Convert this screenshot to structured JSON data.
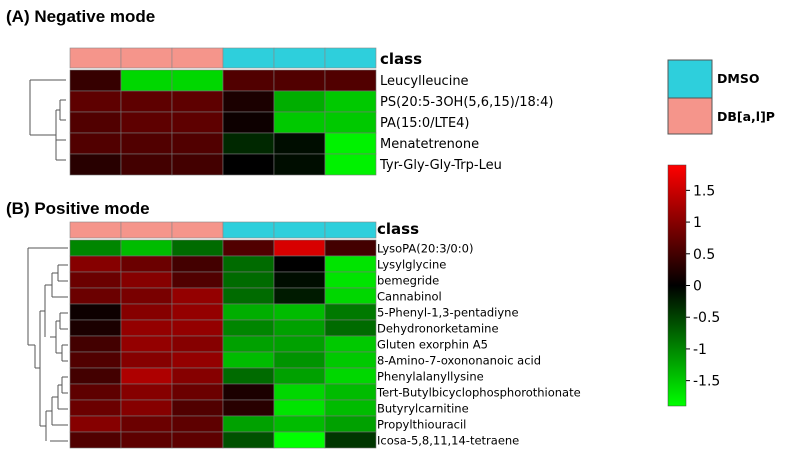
{
  "chart_data": [
    {
      "type": "heatmap",
      "title": "(A) Negative mode",
      "class_label": "class",
      "columns": [
        "DB[a,l]P",
        "DB[a,l]P",
        "DB[a,l]P",
        "DMSO",
        "DMSO",
        "DMSO"
      ],
      "rows": [
        "Leucylleucine",
        "PS(20:5-3OH(5,6,15)/18:4)",
        "PA(15:0/LTE4)",
        "Menatetrenone",
        "Tyr-Gly-Gly-Trp-Leu"
      ],
      "values": [
        [
          0.4,
          -1.6,
          -1.6,
          0.6,
          0.6,
          0.6
        ],
        [
          0.7,
          0.7,
          0.7,
          0.2,
          -1.3,
          -1.5
        ],
        [
          0.6,
          0.7,
          0.7,
          0.1,
          -1.5,
          -1.5
        ],
        [
          0.6,
          0.6,
          0.6,
          -0.3,
          -0.1,
          -1.8
        ],
        [
          0.3,
          0.5,
          0.5,
          0.0,
          -0.1,
          -1.8
        ]
      ]
    },
    {
      "type": "heatmap",
      "title": "(B) Positive mode",
      "class_label": "class",
      "columns": [
        "DB[a,l]P",
        "DB[a,l]P",
        "DB[a,l]P",
        "DMSO",
        "DMSO",
        "DMSO"
      ],
      "rows": [
        "LysoPA(20:3/0:0)",
        "Lysylglycine",
        "bemegride",
        "Cannabinol",
        "5-Phenyl-1,3-pentadiyne",
        "Dehydronorketamine",
        "Gluten exorphin A5",
        "8-Amino-7-oxononanoic acid",
        "Phenylalanyllysine",
        "Tert-Butylbicyclophosphorothionate",
        "Butyrylcarnitine",
        "Propylthiouracil",
        "Icosa-5,8,11,14-tetraene"
      ],
      "values": [
        [
          -1.0,
          -1.4,
          -0.8,
          0.6,
          1.6,
          0.5
        ],
        [
          1.0,
          0.8,
          0.5,
          -0.8,
          0.0,
          -1.7
        ],
        [
          0.8,
          1.0,
          0.6,
          -0.8,
          -0.1,
          -1.7
        ],
        [
          0.8,
          0.9,
          1.1,
          -0.8,
          -0.2,
          -1.6
        ],
        [
          0.1,
          1.0,
          1.1,
          -1.3,
          -1.4,
          -0.9
        ],
        [
          0.2,
          1.1,
          1.1,
          -1.0,
          -1.2,
          -0.8
        ],
        [
          0.5,
          1.1,
          1.0,
          -1.2,
          -1.2,
          -1.5
        ],
        [
          0.6,
          1.0,
          1.1,
          -1.4,
          -1.1,
          -1.5
        ],
        [
          0.5,
          1.3,
          1.0,
          -0.8,
          -1.2,
          -1.6
        ],
        [
          0.7,
          1.0,
          0.8,
          0.2,
          -1.6,
          -1.4
        ],
        [
          0.8,
          1.0,
          0.6,
          0.3,
          -1.7,
          -1.4
        ],
        [
          1.0,
          0.8,
          0.7,
          -1.2,
          -1.4,
          -1.2
        ],
        [
          0.6,
          0.7,
          0.7,
          -0.6,
          -1.9,
          -0.4
        ]
      ]
    }
  ],
  "class_legend": [
    {
      "label": "DMSO",
      "color": "#2ecfdc"
    },
    {
      "label": "DB[a,l]P",
      "color": "#f5958b"
    }
  ],
  "color_scale": {
    "min": -1.9,
    "max": 1.9,
    "ticks": [
      1.5,
      1,
      0.5,
      0,
      -0.5,
      -1,
      -1.5
    ],
    "tick_labels": [
      "1.5",
      "1",
      "0.5",
      "0",
      "-0.5",
      "-1",
      "-1.5"
    ],
    "low_color": "#00ff00",
    "mid_color": "#000000",
    "high_color": "#ff0000"
  }
}
